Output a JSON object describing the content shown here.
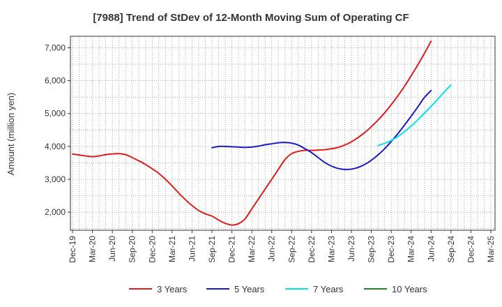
{
  "chart_data": {
    "type": "line",
    "title": "[7988]  Trend of StDev of 12-Month Moving Sum of Operating CF",
    "xlabel": "",
    "ylabel": "Amount (million yen)",
    "x_labels": [
      "Dec-19",
      "Mar-20",
      "Jun-20",
      "Sep-20",
      "Dec-20",
      "Mar-21",
      "Jun-21",
      "Sep-21",
      "Dec-21",
      "Mar-22",
      "Jun-22",
      "Sep-22",
      "Dec-22",
      "Mar-23",
      "Jun-23",
      "Sep-23",
      "Dec-23",
      "Mar-24",
      "Jun-24",
      "Sep-24",
      "Dec-24",
      "Mar-25"
    ],
    "ylim": [
      1450,
      7350
    ],
    "y_ticks": [
      2000,
      3000,
      4000,
      5000,
      6000,
      7000
    ],
    "y_tick_labels": [
      "2,000",
      "3,000",
      "4,000",
      "5,000",
      "6,000",
      "7,000"
    ],
    "grid": true,
    "legend_position": "bottom",
    "series": [
      {
        "name": "3 Years",
        "color": "#e31a1c",
        "start_index": 0,
        "values": [
          3770,
          3740,
          3710,
          3690,
          3710,
          3750,
          3770,
          3780,
          3750,
          3660,
          3560,
          3450,
          3320,
          3180,
          3000,
          2800,
          2580,
          2380,
          2200,
          2050,
          1950,
          1880,
          1760,
          1660,
          1610,
          1650,
          1800,
          2100,
          2400,
          2700,
          3000,
          3300,
          3600,
          3780,
          3850,
          3880,
          3880,
          3890,
          3900,
          3930,
          3970,
          4040,
          4140,
          4270,
          4420,
          4600,
          4800,
          5020,
          5270,
          5540,
          5830,
          6150,
          6480,
          6830,
          7200
        ]
      },
      {
        "name": "5 Years",
        "color": "#1a1acd",
        "start_index": 21,
        "values": [
          3960,
          4000,
          4000,
          3990,
          3980,
          3970,
          3980,
          4010,
          4050,
          4080,
          4110,
          4120,
          4100,
          4040,
          3930,
          3810,
          3660,
          3510,
          3400,
          3330,
          3300,
          3310,
          3360,
          3450,
          3580,
          3740,
          3930,
          4150,
          4390,
          4650,
          4920,
          5200,
          5490,
          5700
        ]
      },
      {
        "name": "7 Years",
        "color": "#00e5ee",
        "start_index": 46,
        "values": [
          4030,
          4090,
          4180,
          4300,
          4450,
          4620,
          4810,
          5010,
          5220,
          5440,
          5660,
          5870
        ]
      },
      {
        "name": "10 Years",
        "color": "#1b8a1b",
        "start_index": 0,
        "values": []
      }
    ]
  }
}
